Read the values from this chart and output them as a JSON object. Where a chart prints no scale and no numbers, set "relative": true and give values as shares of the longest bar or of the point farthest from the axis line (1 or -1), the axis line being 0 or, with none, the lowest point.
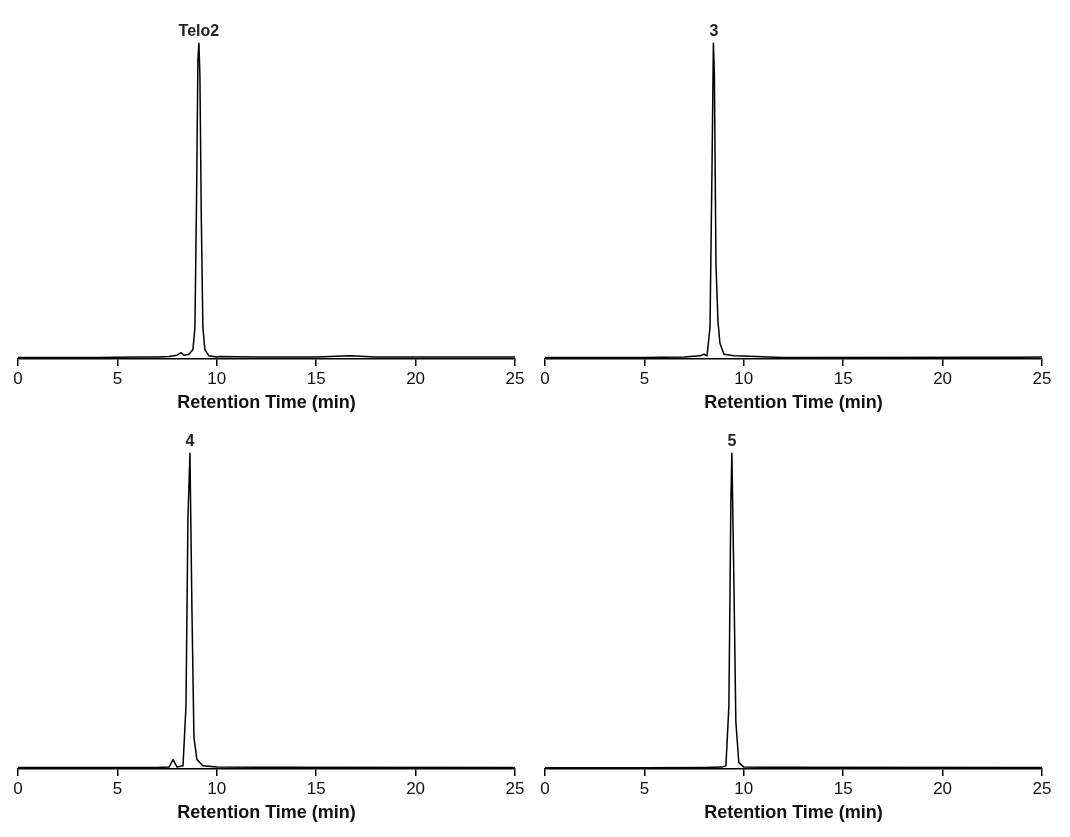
{
  "chart_data": [
    {
      "type": "line",
      "relative": true,
      "color": "#000000",
      "xlabel": "Retention Time (min)",
      "xlim": [
        0,
        25
      ],
      "xticks": [
        0,
        5,
        10,
        15,
        20,
        25
      ],
      "grid": false,
      "annotations": [
        {
          "text": "Telo2",
          "x": 9.1,
          "y": 1
        }
      ],
      "x": [
        0,
        2,
        4,
        6,
        7,
        7.6,
        8.0,
        8.2,
        8.35,
        8.6,
        8.8,
        8.9,
        8.98,
        9.05,
        9.1,
        9.15,
        9.22,
        9.3,
        9.4,
        9.6,
        10,
        10.1,
        12,
        15,
        16.7,
        18,
        20,
        25
      ],
      "values": [
        0.005,
        0.005,
        0.005,
        0.006,
        0.006,
        0.008,
        0.012,
        0.02,
        0.012,
        0.015,
        0.03,
        0.1,
        0.5,
        0.95,
        1,
        0.9,
        0.45,
        0.1,
        0.03,
        0.01,
        0.006,
        0.008,
        0.006,
        0.006,
        0.01,
        0.006,
        0.006,
        0.006
      ]
    },
    {
      "type": "line",
      "relative": true,
      "color": "#000000",
      "xlabel": "Retention Time (min)",
      "xlim": [
        0,
        25
      ],
      "xticks": [
        0,
        5,
        10,
        15,
        20,
        25
      ],
      "grid": false,
      "annotations": [
        {
          "text": "3",
          "x": 8.5,
          "y": 1
        }
      ],
      "x": [
        0,
        5,
        7,
        7.8,
        8.0,
        8.15,
        8.3,
        8.4,
        8.47,
        8.52,
        8.6,
        8.7,
        8.8,
        9.0,
        9.5,
        12,
        25
      ],
      "values": [
        0.005,
        0.005,
        0.006,
        0.01,
        0.015,
        0.01,
        0.1,
        0.6,
        1,
        0.9,
        0.3,
        0.12,
        0.05,
        0.015,
        0.01,
        0.005,
        0.006
      ]
    },
    {
      "type": "line",
      "relative": true,
      "color": "#000000",
      "xlabel": "Retention Time (min)",
      "xlim": [
        0,
        25
      ],
      "xticks": [
        0,
        5,
        10,
        15,
        20,
        25
      ],
      "grid": false,
      "annotations": [
        {
          "text": "4",
          "x": 8.65,
          "y": 1
        }
      ],
      "x": [
        0,
        5,
        7,
        7.6,
        7.8,
        8.0,
        8.3,
        8.45,
        8.55,
        8.65,
        8.75,
        8.85,
        9.0,
        9.3,
        10,
        25
      ],
      "values": [
        0.005,
        0.005,
        0.005,
        0.006,
        0.03,
        0.006,
        0.01,
        0.2,
        0.8,
        1,
        0.5,
        0.1,
        0.03,
        0.01,
        0.006,
        0.005
      ]
    },
    {
      "type": "line",
      "relative": true,
      "color": "#000000",
      "xlabel": "Retention Time (min)",
      "xlim": [
        0,
        25
      ],
      "xticks": [
        0,
        5,
        10,
        15,
        20,
        25
      ],
      "grid": false,
      "annotations": [
        {
          "text": "5",
          "x": 9.4,
          "y": 1
        }
      ],
      "x": [
        0,
        5,
        8,
        8.9,
        9.1,
        9.25,
        9.35,
        9.4,
        9.5,
        9.6,
        9.75,
        10,
        25
      ],
      "values": [
        0.004,
        0.004,
        0.005,
        0.006,
        0.01,
        0.2,
        0.85,
        1,
        0.6,
        0.15,
        0.02,
        0.006,
        0.005
      ]
    }
  ]
}
